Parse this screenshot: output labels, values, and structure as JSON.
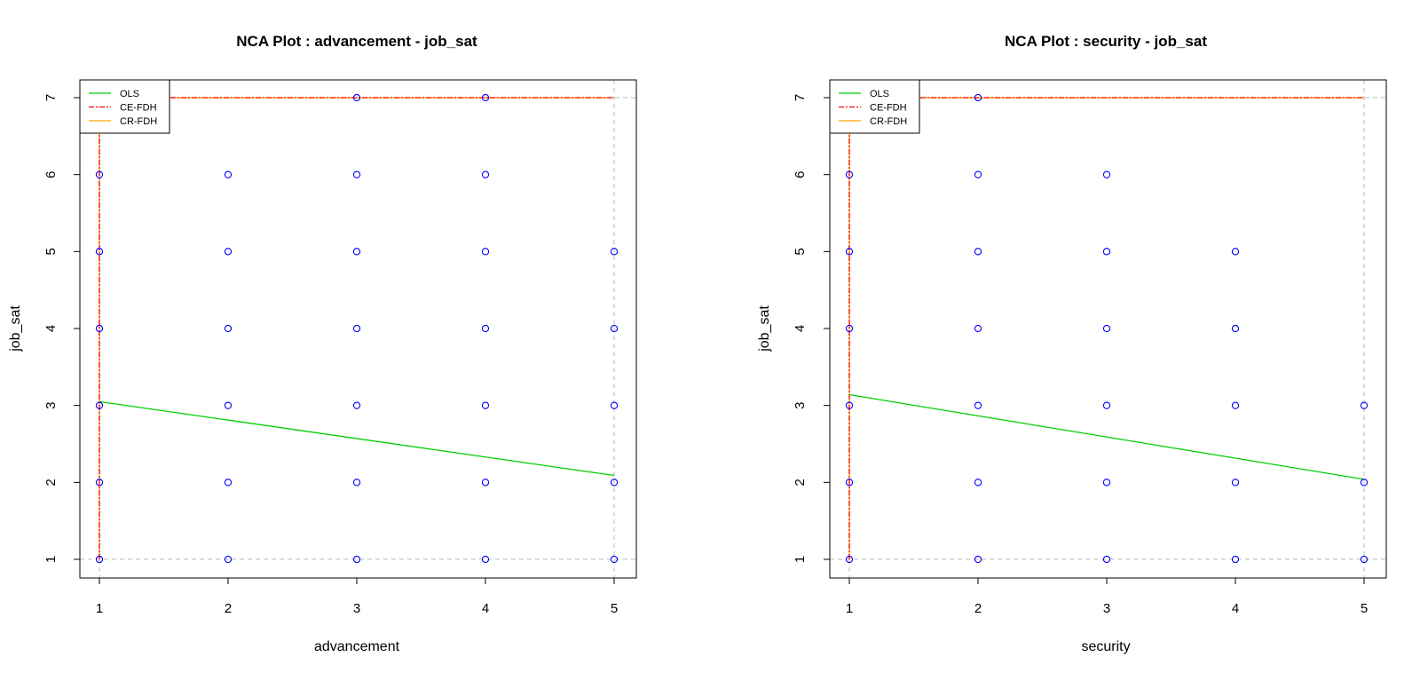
{
  "chart_data": [
    {
      "type": "scatter",
      "title": "NCA Plot : advancement - job_sat",
      "xlabel": "advancement",
      "ylabel": "job_sat",
      "xlim": [
        1,
        5
      ],
      "ylim": [
        1,
        7
      ],
      "x_ticks": [
        "1",
        "2",
        "3",
        "4",
        "5"
      ],
      "y_ticks": [
        "1",
        "2",
        "3",
        "4",
        "5",
        "6",
        "7"
      ],
      "points": [
        [
          1,
          1
        ],
        [
          1,
          2
        ],
        [
          1,
          3
        ],
        [
          1,
          4
        ],
        [
          1,
          5
        ],
        [
          1,
          6
        ],
        [
          1,
          7
        ],
        [
          2,
          1
        ],
        [
          2,
          2
        ],
        [
          2,
          3
        ],
        [
          2,
          4
        ],
        [
          2,
          5
        ],
        [
          2,
          6
        ],
        [
          3,
          1
        ],
        [
          3,
          2
        ],
        [
          3,
          3
        ],
        [
          3,
          4
        ],
        [
          3,
          5
        ],
        [
          3,
          6
        ],
        [
          3,
          7
        ],
        [
          4,
          1
        ],
        [
          4,
          2
        ],
        [
          4,
          3
        ],
        [
          4,
          4
        ],
        [
          4,
          5
        ],
        [
          4,
          6
        ],
        [
          4,
          7
        ],
        [
          5,
          1
        ],
        [
          5,
          2
        ],
        [
          5,
          3
        ],
        [
          5,
          4
        ],
        [
          5,
          5
        ]
      ],
      "lines": {
        "OLS": {
          "x": [
            1,
            5
          ],
          "y": [
            3.05,
            2.09
          ]
        },
        "CE-FDH": {
          "x": [
            1,
            1,
            5
          ],
          "y": [
            1,
            7,
            7
          ]
        },
        "CR-FDH": {
          "x": [
            1,
            1,
            5
          ],
          "y": [
            1,
            7,
            7
          ]
        }
      },
      "legend": [
        "OLS",
        "CE-FDH",
        "CR-FDH"
      ],
      "legend_position": "top-left",
      "colors": {
        "point": "#0000ff",
        "OLS": "#00cc00",
        "CE-FDH": "#ff0000",
        "CR-FDH": "#ffa500",
        "reference": "#bbbbbb"
      }
    },
    {
      "type": "scatter",
      "title": "NCA Plot : security - job_sat",
      "xlabel": "security",
      "ylabel": "job_sat",
      "xlim": [
        1,
        5
      ],
      "ylim": [
        1,
        7
      ],
      "x_ticks": [
        "1",
        "2",
        "3",
        "4",
        "5"
      ],
      "y_ticks": [
        "1",
        "2",
        "3",
        "4",
        "5",
        "6",
        "7"
      ],
      "points": [
        [
          1,
          1
        ],
        [
          1,
          2
        ],
        [
          1,
          3
        ],
        [
          1,
          4
        ],
        [
          1,
          5
        ],
        [
          1,
          6
        ],
        [
          1,
          7
        ],
        [
          2,
          1
        ],
        [
          2,
          2
        ],
        [
          2,
          3
        ],
        [
          2,
          4
        ],
        [
          2,
          5
        ],
        [
          2,
          6
        ],
        [
          2,
          7
        ],
        [
          3,
          1
        ],
        [
          3,
          2
        ],
        [
          3,
          3
        ],
        [
          3,
          4
        ],
        [
          3,
          5
        ],
        [
          3,
          6
        ],
        [
          4,
          1
        ],
        [
          4,
          2
        ],
        [
          4,
          3
        ],
        [
          4,
          4
        ],
        [
          4,
          5
        ],
        [
          5,
          1
        ],
        [
          5,
          2
        ],
        [
          5,
          3
        ]
      ],
      "lines": {
        "OLS": {
          "x": [
            1,
            5
          ],
          "y": [
            3.14,
            2.04
          ]
        },
        "CE-FDH": {
          "x": [
            1,
            1,
            5
          ],
          "y": [
            1,
            7,
            7
          ]
        },
        "CR-FDH": {
          "x": [
            1,
            1,
            5
          ],
          "y": [
            1,
            7,
            7
          ]
        }
      },
      "legend": [
        "OLS",
        "CE-FDH",
        "CR-FDH"
      ],
      "legend_position": "top-left",
      "colors": {
        "point": "#0000ff",
        "OLS": "#00cc00",
        "CE-FDH": "#ff0000",
        "CR-FDH": "#ffa500",
        "reference": "#bbbbbb"
      }
    }
  ]
}
